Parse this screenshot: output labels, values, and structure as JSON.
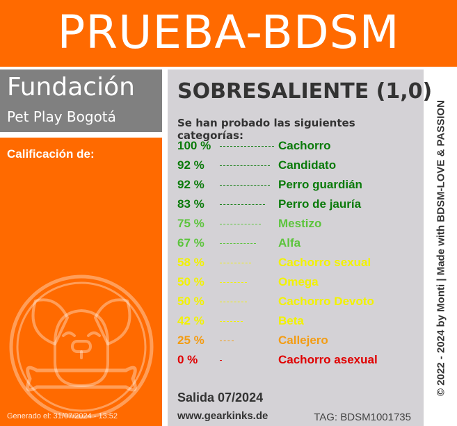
{
  "banner": {
    "title": "PRUEBA-BDSM"
  },
  "organization": {
    "name": "Fundación",
    "subtitle": "Pet Play Bogotá"
  },
  "rating_label": "Calificación de:",
  "generated": "Generado el: 31/07/2024 - 13:52",
  "result": {
    "title": "SOBRESALIENTE (1,0)",
    "intro": "Se han probado las siguientes categorías:",
    "categories": [
      {
        "percent": "100 %",
        "value": 100,
        "name": "Cachorro",
        "color": "#0a7a0a"
      },
      {
        "percent": "92 %",
        "value": 92,
        "name": "Candidato",
        "color": "#0a7a0a"
      },
      {
        "percent": "92 %",
        "value": 92,
        "name": "Perro guardián",
        "color": "#0a7a0a"
      },
      {
        "percent": "83 %",
        "value": 83,
        "name": "Perro de jauría",
        "color": "#0a7a0a"
      },
      {
        "percent": "75 %",
        "value": 75,
        "name": "Mestizo",
        "color": "#5cc43c"
      },
      {
        "percent": "67 %",
        "value": 67,
        "name": "Alfa",
        "color": "#5cc43c"
      },
      {
        "percent": "58 %",
        "value": 58,
        "name": "Cachorro sexual",
        "color": "#f2f200"
      },
      {
        "percent": "50 %",
        "value": 50,
        "name": "Omega",
        "color": "#f2f200"
      },
      {
        "percent": "50 %",
        "value": 50,
        "name": "Cachorro Devoto",
        "color": "#f2f200"
      },
      {
        "percent": "42 %",
        "value": 42,
        "name": "Beta",
        "color": "#f2f200"
      },
      {
        "percent": "25 %",
        "value": 25,
        "name": "Callejero",
        "color": "#f39c12"
      },
      {
        "percent": "0 %",
        "value": 0,
        "name": "Cachorro asexual",
        "color": "#e00000"
      }
    ]
  },
  "footer": {
    "release": "Salida 07/2024",
    "website": "www.gearkinks.de",
    "tag": "TAG: BDSM1001735",
    "copyright": "© 2022 - 2024 by Monti | Made with BDSM-LOVE & PASSION"
  },
  "colors": {
    "orange": "#ff6a00",
    "gray_header": "#808080",
    "panel": "#d4d2d6"
  },
  "icons": {
    "logo": "puppy-bone-icon"
  }
}
